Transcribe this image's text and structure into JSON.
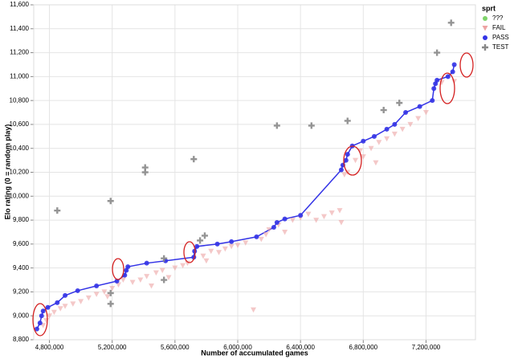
{
  "chart_data": {
    "type": "scatter",
    "xlabel": "Number of accumulated games",
    "ylabel": "Elo rating (0 = random play)",
    "legend_title": "sprt",
    "legend": "right",
    "grid": true,
    "xlim": [
      4700000,
      7515000
    ],
    "ylim": [
      8800,
      11600
    ],
    "xticks": [
      {
        "value": 4800000,
        "label": "4,800,000"
      },
      {
        "value": 5200000,
        "label": "5,200,000"
      },
      {
        "value": 5600000,
        "label": "5,600,000"
      },
      {
        "value": 6000000,
        "label": "6,000,000"
      },
      {
        "value": 6400000,
        "label": "6,400,000"
      },
      {
        "value": 6800000,
        "label": "6,800,000"
      },
      {
        "value": 7200000,
        "label": "7,200,000"
      }
    ],
    "yticks": [
      {
        "value": 8800,
        "label": "8,800"
      },
      {
        "value": 9000,
        "label": "9,000"
      },
      {
        "value": 9200,
        "label": "9,200"
      },
      {
        "value": 9400,
        "label": "9,400"
      },
      {
        "value": 9600,
        "label": "9,600"
      },
      {
        "value": 9800,
        "label": "9,800"
      },
      {
        "value": 10000,
        "label": "10,000"
      },
      {
        "value": 10200,
        "label": "10,200"
      },
      {
        "value": 10400,
        "label": "10,400"
      },
      {
        "value": 10600,
        "label": "10,600"
      },
      {
        "value": 10800,
        "label": "10,800"
      },
      {
        "value": 11000,
        "label": "11,000"
      },
      {
        "value": 11200,
        "label": "11,200"
      },
      {
        "value": 11400,
        "label": "11,400"
      },
      {
        "value": 11600,
        "label": "11,600"
      }
    ],
    "series": [
      {
        "name": "???",
        "color": "#7ed36a",
        "shape": "circle",
        "x": [],
        "y": []
      },
      {
        "name": "FAIL",
        "color": "#eda3a3",
        "shape": "triangle-down",
        "x": [
          4760000,
          4780000,
          4800000,
          4830000,
          4870000,
          4900000,
          4950000,
          5000000,
          5050000,
          5100000,
          5150000,
          5170000,
          5200000,
          5240000,
          5270000,
          5330000,
          5380000,
          5420000,
          5450000,
          5480000,
          5520000,
          5560000,
          5600000,
          5650000,
          5680000,
          5780000,
          5800000,
          5830000,
          5880000,
          5920000,
          5960000,
          6000000,
          6050000,
          6100000,
          6150000,
          6180000,
          6200000,
          6260000,
          6300000,
          6350000,
          6400000,
          6450000,
          6500000,
          6550000,
          6600000,
          6650000,
          6660000,
          6680000,
          6700000,
          6750000,
          6780000,
          6800000,
          6850000,
          6880000,
          6900000,
          6950000,
          7000000,
          7050000,
          7100000,
          7150000,
          7200000,
          7300000,
          7380000
        ],
        "y": [
          8920,
          8960,
          9000,
          9030,
          9060,
          9080,
          9100,
          9120,
          9150,
          9180,
          9200,
          9160,
          9230,
          9260,
          9300,
          9280,
          9300,
          9330,
          9250,
          9360,
          9380,
          9320,
          9400,
          9420,
          9440,
          9500,
          9460,
          9540,
          9530,
          9560,
          9580,
          9590,
          9610,
          9050,
          9640,
          9680,
          9720,
          9760,
          9700,
          9800,
          9820,
          9850,
          9800,
          9830,
          9860,
          9880,
          9780,
          10180,
          10200,
          10300,
          10380,
          10330,
          10400,
          10280,
          10450,
          10480,
          10520,
          10560,
          10600,
          10650,
          10700,
          10950,
          10960
        ]
      },
      {
        "name": "PASS",
        "color": "#3333e6",
        "shape": "circle",
        "connect": true,
        "x": [
          4720000,
          4740000,
          4750000,
          4760000,
          4790000,
          4850000,
          4900000,
          4980000,
          5100000,
          5230000,
          5280000,
          5290000,
          5300000,
          5420000,
          5540000,
          5720000,
          5725000,
          5740000,
          5870000,
          5960000,
          6120000,
          6230000,
          6250000,
          6300000,
          6400000,
          6660000,
          6670000,
          6690000,
          6700000,
          6730000,
          6800000,
          6870000,
          6950000,
          7000000,
          7070000,
          7160000,
          7240000,
          7250000,
          7260000,
          7270000,
          7340000,
          7370000,
          7380000
        ],
        "y": [
          8890,
          8940,
          9000,
          9040,
          9070,
          9110,
          9170,
          9210,
          9250,
          9290,
          9340,
          9380,
          9410,
          9440,
          9460,
          9490,
          9540,
          9580,
          9600,
          9620,
          9660,
          9740,
          9780,
          9810,
          9840,
          10220,
          10260,
          10300,
          10350,
          10420,
          10460,
          10500,
          10560,
          10600,
          10700,
          10750,
          10800,
          10900,
          10940,
          10970,
          11000,
          11040,
          11100
        ]
      },
      {
        "name": "TEST",
        "color": "#888888",
        "shape": "plus",
        "x": [
          4850000,
          5190000,
          5410000,
          5410000,
          5720000,
          6250000,
          6470000,
          6700000,
          6930000,
          7030000,
          7270000,
          7360000,
          5190000,
          5190000,
          5530000,
          5530000,
          5760000,
          5790000
        ],
        "y": [
          9880,
          9960,
          10240,
          10200,
          10310,
          10590,
          10590,
          10630,
          10720,
          10780,
          11200,
          11450,
          9190,
          9100,
          9480,
          9300,
          9630,
          9670
        ]
      }
    ]
  }
}
